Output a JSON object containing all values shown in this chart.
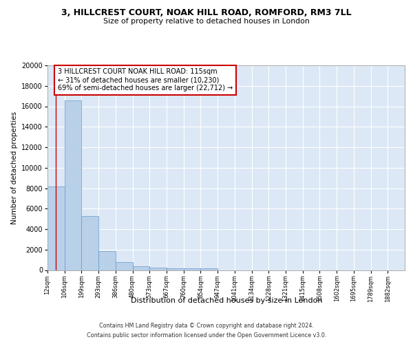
{
  "title": "3, HILLCREST COURT, NOAK HILL ROAD, ROMFORD, RM3 7LL",
  "subtitle": "Size of property relative to detached houses in London",
  "xlabel": "Distribution of detached houses by size in London",
  "ylabel": "Number of detached properties",
  "bar_color": "#b8d0e8",
  "bar_edge_color": "#6699cc",
  "bg_color": "#dce8f5",
  "grid_color": "#ffffff",
  "categories": [
    "12sqm",
    "106sqm",
    "199sqm",
    "293sqm",
    "386sqm",
    "480sqm",
    "573sqm",
    "667sqm",
    "760sqm",
    "854sqm",
    "947sqm",
    "1041sqm",
    "1134sqm",
    "1228sqm",
    "1321sqm",
    "1415sqm",
    "1508sqm",
    "1602sqm",
    "1695sqm",
    "1789sqm",
    "1882sqm"
  ],
  "values": [
    8200,
    16600,
    5300,
    1850,
    750,
    350,
    265,
    200,
    140,
    170,
    0,
    0,
    0,
    0,
    0,
    0,
    0,
    0,
    0,
    0,
    0
  ],
  "vline_position": 0.5,
  "vline_color": "#cc0000",
  "annotation_line1": "3 HILLCREST COURT NOAK HILL ROAD: 115sqm",
  "annotation_line2": "← 31% of detached houses are smaller (10,230)",
  "annotation_line3": "69% of semi-detached houses are larger (22,712) →",
  "annotation_box_facecolor": "#ffffff",
  "annotation_box_edgecolor": "#cc0000",
  "footnote1": "Contains HM Land Registry data © Crown copyright and database right 2024.",
  "footnote2": "Contains public sector information licensed under the Open Government Licence v3.0.",
  "ylim": [
    0,
    20000
  ],
  "yticks": [
    0,
    2000,
    4000,
    6000,
    8000,
    10000,
    12000,
    14000,
    16000,
    18000,
    20000
  ]
}
